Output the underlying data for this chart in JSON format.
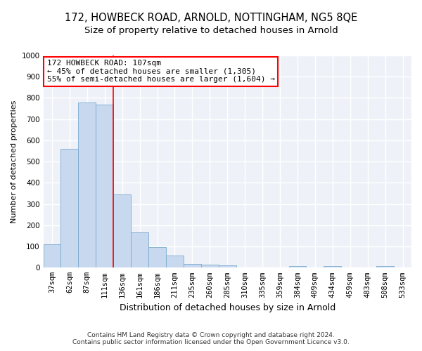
{
  "title": "172, HOWBECK ROAD, ARNOLD, NOTTINGHAM, NG5 8QE",
  "subtitle": "Size of property relative to detached houses in Arnold",
  "xlabel": "Distribution of detached houses by size in Arnold",
  "ylabel": "Number of detached properties",
  "categories": [
    "37sqm",
    "62sqm",
    "87sqm",
    "111sqm",
    "136sqm",
    "161sqm",
    "186sqm",
    "211sqm",
    "235sqm",
    "260sqm",
    "285sqm",
    "310sqm",
    "335sqm",
    "359sqm",
    "384sqm",
    "409sqm",
    "434sqm",
    "459sqm",
    "483sqm",
    "508sqm",
    "533sqm"
  ],
  "values": [
    110,
    560,
    778,
    770,
    345,
    165,
    98,
    57,
    18,
    13,
    10,
    0,
    0,
    0,
    8,
    0,
    8,
    0,
    0,
    8,
    0
  ],
  "bar_color": "#c8d8ee",
  "bar_edge_color": "#7aaacf",
  "vline_x": 3.5,
  "vline_color": "red",
  "annotation_text": "172 HOWBECK ROAD: 107sqm\n← 45% of detached houses are smaller (1,305)\n55% of semi-detached houses are larger (1,604) →",
  "annotation_box_color": "white",
  "annotation_box_edge": "red",
  "ylim": [
    0,
    1000
  ],
  "yticks": [
    0,
    100,
    200,
    300,
    400,
    500,
    600,
    700,
    800,
    900,
    1000
  ],
  "footer1": "Contains HM Land Registry data © Crown copyright and database right 2024.",
  "footer2": "Contains public sector information licensed under the Open Government Licence v3.0.",
  "bg_color": "#ffffff",
  "plot_bg_color": "#eef2f8",
  "grid_color": "#ffffff",
  "title_fontsize": 10.5,
  "subtitle_fontsize": 9.5,
  "ylabel_fontsize": 8,
  "xlabel_fontsize": 9,
  "tick_fontsize": 7.5,
  "footer_fontsize": 6.5,
  "annotation_fontsize": 8
}
